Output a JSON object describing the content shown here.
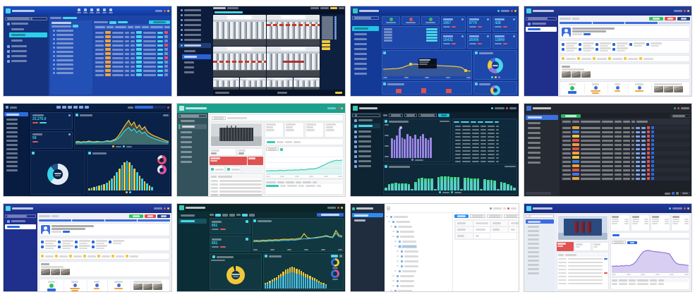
{
  "page": {
    "background": "#ffffff",
    "layout": "4x3-screenshot-gallery"
  },
  "tiles": {
    "t1": {
      "label": "device-status-table-dashboard",
      "theme": {
        "hd": "#1b52c8",
        "sb": "#16337f",
        "bg": "#1d44a6",
        "pn": "#2350b4",
        "ac": "#2ad0e8"
      },
      "nav_icons": 6,
      "sidebar_items": 4,
      "tree_rows": 11,
      "badge_color": "#f0a33c",
      "table_rows": [
        {
          "t": "#e05560"
        },
        {
          "t": ""
        },
        {
          "t": ""
        },
        {
          "t": "#e05560"
        },
        {
          "t": ""
        },
        {
          "t": ""
        },
        {
          "t": "#e05560"
        },
        {
          "t": ""
        },
        {
          "t": ""
        },
        {
          "t": ""
        },
        {
          "t": ""
        }
      ]
    },
    "t2": {
      "label": "camera-video-wall",
      "accent": "#2a62d8",
      "button_color": "#e8c23c",
      "sidebar_items": 7,
      "sidebar_tail_items": 3,
      "right_rows": 11,
      "small_cams": 4,
      "yellow_buttons": 3
    },
    "t3": {
      "label": "monitoring-overview-dashboard",
      "theme": {
        "hd": "#1948b4",
        "sb": "#143a98",
        "bg": "#16388e"
      },
      "status_colors": [
        "#35c05a",
        "#e05050",
        "#35c05a"
      ],
      "kpis": [
        {
          "v": "1957"
        },
        {
          "v": "9774"
        },
        {
          "v": "428"
        },
        {
          "v": "15431"
        },
        {
          "v": "26006"
        },
        {
          "v": "12840"
        }
      ],
      "info_rows": 5,
      "sidebar_items": 9,
      "line": {
        "type": "lines",
        "series": [
          {
            "c": "#f0c83c",
            "fill": "rgba(240,200,60,.12)",
            "values": [
              33,
              34,
              35,
              36,
              40,
              48,
              56,
              57,
              55,
              53,
              52,
              54,
              50,
              49,
              48,
              47,
              45,
              42,
              26,
              24
            ]
          }
        ],
        "markers": [
          {
            "i": 6,
            "c": "#f0c83c"
          },
          {
            "i": 18,
            "c": "#f0c83c"
          }
        ]
      },
      "donut": {
        "type": "donut",
        "hole": "#16388e",
        "segments": [
          {
            "c": "#49d6e8",
            "v": 46
          },
          {
            "c": "#8f7ad8",
            "v": 22
          },
          {
            "c": "#f0c83c",
            "v": 20
          },
          {
            "c": "#3b6de0",
            "v": 12
          }
        ]
      },
      "bars": {
        "type": "bars",
        "values": [
          3,
          2,
          58,
          3,
          2,
          3,
          72,
          2,
          3,
          2,
          64,
          3,
          2,
          2
        ],
        "colors": [
          "#3b5fb0",
          "#3b5fb0",
          "#e05050",
          "#3b5fb0",
          "#3b5fb0",
          "#3b5fb0",
          "#e05050",
          "#3b5fb0",
          "#3b5fb0",
          "#3b5fb0",
          "#e05050",
          "#3b5fb0",
          "#3b5fb0",
          "#3b5fb0"
        ]
      },
      "donut2": {
        "type": "donut",
        "hole": "#16388e",
        "segments": [
          {
            "c": "#49d6e8",
            "v": 60
          },
          {
            "c": "#f0c83c",
            "v": 25
          },
          {
            "c": "#8f7ad8",
            "v": 15
          }
        ]
      }
    },
    "t4": {
      "label": "workorder-detail-light",
      "buttons": {
        "green": "#35c05a",
        "red": "#e55050",
        "navy": "#27408f"
      },
      "checklist_row1": 6,
      "checklist_row2": 4,
      "yellow_items": 6,
      "photos": 3,
      "photos2": 3,
      "progress_filled": 3
    },
    "t5": {
      "label": "energy-analytics-dark",
      "kpi1": "23,276.0",
      "kpi2": "59",
      "accent": "#35d3e8",
      "chips": 6,
      "sidebar_items": 13,
      "area": {
        "type": "lines",
        "series": [
          {
            "c": "#f0c83c",
            "fill": "rgba(240,200,60,.25)",
            "values": [
              10,
              12,
              9,
              11,
              10,
              13,
              11,
              10,
              12,
              11,
              10,
              12,
              14,
              12,
              16,
              20,
              30,
              45,
              60,
              75,
              88,
              70,
              82,
              60,
              72,
              55,
              65,
              48,
              40,
              34,
              30,
              26,
              22,
              18,
              14,
              12
            ]
          },
          {
            "c": "#35d3e8",
            "fill": "rgba(53,211,232,.25)",
            "values": [
              6,
              8,
              7,
              9,
              8,
              10,
              9,
              8,
              9,
              10,
              9,
              11,
              12,
              10,
              13,
              16,
              22,
              32,
              45,
              55,
              62,
              50,
              58,
              44,
              52,
              40,
              46,
              34,
              28,
              24,
              20,
              17,
              14,
              11,
              9,
              8
            ]
          }
        ]
      },
      "donut": {
        "type": "donut",
        "hole": "#0a2148",
        "segments": [
          {
            "c": "#e4ecf4",
            "v": 62
          },
          {
            "c": "#35d3e8",
            "v": 26
          },
          {
            "c": "#24508e",
            "v": 12
          }
        ]
      },
      "bars": {
        "type": "bars",
        "colors": [
          "#f0c83c",
          "#35d3e8"
        ],
        "values": [
          6,
          8,
          10,
          12,
          14,
          16,
          18,
          22,
          28,
          34,
          42,
          52,
          62,
          72,
          80,
          84,
          80,
          72,
          62,
          52,
          42,
          34,
          26,
          20,
          14,
          10
        ]
      },
      "ring1": {
        "type": "donut",
        "hole": "#0a2148",
        "segments": [
          {
            "c": "#e05070",
            "v": 78
          },
          {
            "c": "#e8eef5",
            "v": 22
          }
        ]
      },
      "ring2": {
        "type": "donut",
        "hole": "#0a2148",
        "segments": [
          {
            "c": "#e050a0",
            "v": 62
          },
          {
            "c": "#e8eef5",
            "v": 38
          }
        ]
      }
    },
    "t6": {
      "label": "transformer-detail-teal",
      "theme": {
        "hd": "#1ba08e"
      },
      "alert_color": "#e05252",
      "accent": "#2bbfa4",
      "sidebar_items": 7,
      "list_rows": 6,
      "info_cards": 4,
      "tabs": 4,
      "area": {
        "type": "lines",
        "series": [
          {
            "c": "#3cc8b4",
            "fill": "rgba(60,200,180,.18)",
            "values": [
              18,
              18,
              19,
              18,
              19,
              20,
              19,
              20,
              21,
              20,
              22,
              21,
              23,
              22,
              24,
              26,
              25,
              28,
              32,
              38,
              44,
              50,
              56,
              60,
              63,
              62,
              64
            ]
          }
        ]
      }
    },
    "t7": {
      "label": "harmonic-analysis-dark",
      "accent": "#23c8dc",
      "sidebar_items": 8,
      "table_rows": 13,
      "pbars": {
        "type": "bars",
        "colors": [
          "#9b86e8"
        ],
        "values": [
          58,
          54,
          66,
          86,
          60,
          56,
          70,
          64,
          58,
          68,
          56,
          64,
          70,
          58,
          53,
          60
        ]
      },
      "tbars": {
        "type": "bars",
        "colors": [
          "#56cfc4"
        ],
        "cap": "#43d98a",
        "values": [
          14,
          30,
          33,
          34,
          33,
          32,
          31,
          30,
          5,
          38,
          54,
          57,
          56,
          55,
          54,
          5,
          60,
          63,
          64,
          63,
          62,
          61,
          60,
          5,
          58,
          57,
          56,
          55,
          54,
          5,
          52,
          50,
          48,
          46,
          5,
          40,
          36,
          30,
          22,
          12
        ]
      }
    },
    "t8": {
      "label": "alarm-table-dark",
      "green_button": "#2fae62",
      "link_color": "#4a80e8",
      "sidebar_items": 9,
      "rows": [
        {
          "c": "#e8a23c"
        },
        {
          "c": "#3f78e0"
        },
        {
          "c": "#e8c83c"
        },
        {
          "c": "#e05050"
        },
        {
          "c": "#e8a23c"
        },
        {
          "c": "#e05050"
        },
        {
          "c": "#e8a23c"
        },
        {
          "c": "#e8c83c"
        },
        {
          "c": "#3f78e0"
        },
        {
          "c": "#e8a23c"
        },
        {
          "c": "#e05050"
        },
        {
          "c": "#3f78e0"
        },
        {
          "c": "#e8a23c"
        }
      ]
    },
    "t9": {
      "label": "workorder-detail-light-2",
      "buttons": {
        "green": "#35c05a",
        "red": "#e55050",
        "navy": "#27408f"
      },
      "checklist_row1": 5,
      "checklist_row2": 4,
      "yellow_items": 7,
      "photos": 3,
      "photos2": 3,
      "progress_filled": 4
    },
    "t10": {
      "label": "maintenance-dashboard-teal-dark",
      "kpi1": "651",
      "kpi2": "651",
      "accent": "#35d3e8",
      "select_color": "#2e6bdc",
      "lines": {
        "type": "lines",
        "series": [
          {
            "c": "#f0c83c",
            "values": [
              30,
              31,
              30,
              32,
              31,
              33,
              32,
              34,
              33,
              35,
              36,
              35,
              37,
              36,
              38,
              40,
              58,
              42,
              40,
              41,
              43,
              45,
              47,
              50,
              46,
              44,
              70,
              52,
              48
            ]
          },
          {
            "c": "#49b8d8",
            "values": [
              26,
              27,
              26,
              28,
              27,
              29,
              28,
              30,
              29,
              31,
              32,
              31,
              33,
              32,
              34,
              36,
              38,
              37,
              39,
              40,
              41,
              43,
              45,
              47,
              44,
              42,
              60,
              46,
              44
            ]
          }
        ]
      },
      "donut": {
        "type": "donut",
        "hole": "#113740",
        "segments": [
          {
            "c": "#f0c83c",
            "v": 96
          },
          {
            "c": "#0d2a31",
            "v": 4
          }
        ]
      },
      "bars": {
        "type": "bars",
        "colors": [
          "#49b8d8"
        ],
        "cap": "#f0c83c",
        "values": [
          18,
          22,
          26,
          30,
          34,
          38,
          44,
          50,
          56,
          62,
          66,
          70,
          72,
          70,
          66,
          62,
          58,
          54,
          50,
          46,
          42,
          38,
          34,
          30,
          26,
          22,
          18,
          15
        ]
      },
      "ring1": {
        "type": "donut",
        "hole": "#113740",
        "segments": [
          {
            "c": "#f0c83c",
            "v": 55
          },
          {
            "c": "#3b6de0",
            "v": 45
          }
        ]
      },
      "ring2": {
        "type": "donut",
        "hole": "#113740",
        "segments": [
          {
            "c": "#e0509a",
            "v": 40
          },
          {
            "c": "#3b6de0",
            "v": 60
          }
        ]
      }
    },
    "t11": {
      "label": "asset-tree-admin-light",
      "active_color": "#2d8cf0",
      "logo_color": "#2bbfa4",
      "alert_color": "#e05050",
      "sidebar_items": 10,
      "tabs": 5,
      "tree_rows": [
        {
          "p": "0px",
          "b": ""
        },
        {
          "p": "3px",
          "b": ""
        },
        {
          "p": "6px",
          "b": ""
        },
        {
          "p": "9px",
          "b": ""
        },
        {
          "p": "9px",
          "b": ""
        },
        {
          "p": "12px",
          "b": ""
        },
        {
          "p": "12px",
          "b": "#cfe6fb"
        },
        {
          "p": "15px",
          "b": ""
        },
        {
          "p": "15px",
          "b": ""
        },
        {
          "p": "15px",
          "b": ""
        },
        {
          "p": "15px",
          "b": ""
        },
        {
          "p": "12px",
          "b": ""
        },
        {
          "p": "9px",
          "b": ""
        },
        {
          "p": "9px",
          "b": ""
        },
        {
          "p": "9px",
          "b": ""
        },
        {
          "p": "6px",
          "b": ""
        },
        {
          "p": "9px",
          "b": ""
        },
        {
          "p": "6px",
          "b": ""
        }
      ]
    },
    "t12": {
      "label": "transformer-detail-blue-light",
      "alert_color": "#e05252",
      "accent": "#2d6ae0",
      "sidebar_items": 12,
      "info_cards": 4,
      "tabs": 6,
      "list_rows": [
        {
          "t": "#2d6ae0"
        },
        {
          "t": ""
        },
        {
          "t": ""
        },
        {
          "t": ""
        },
        {
          "t": "#e05252"
        },
        {
          "t": ""
        },
        {
          "t": ""
        },
        {
          "t": ""
        }
      ],
      "area": {
        "type": "lines",
        "series": [
          {
            "c": "#8f7ad8",
            "fill": "rgba(182,166,230,.55)",
            "values": [
              24,
              24,
              25,
              24,
              26,
              25,
              27,
              26,
              28,
              32,
              40,
              52,
              64,
              74,
              79,
              80,
              79,
              77,
              76,
              75,
              74,
              73,
              72,
              70,
              68,
              55,
              42,
              34,
              31,
              30,
              29,
              28,
              27
            ]
          }
        ]
      }
    }
  }
}
